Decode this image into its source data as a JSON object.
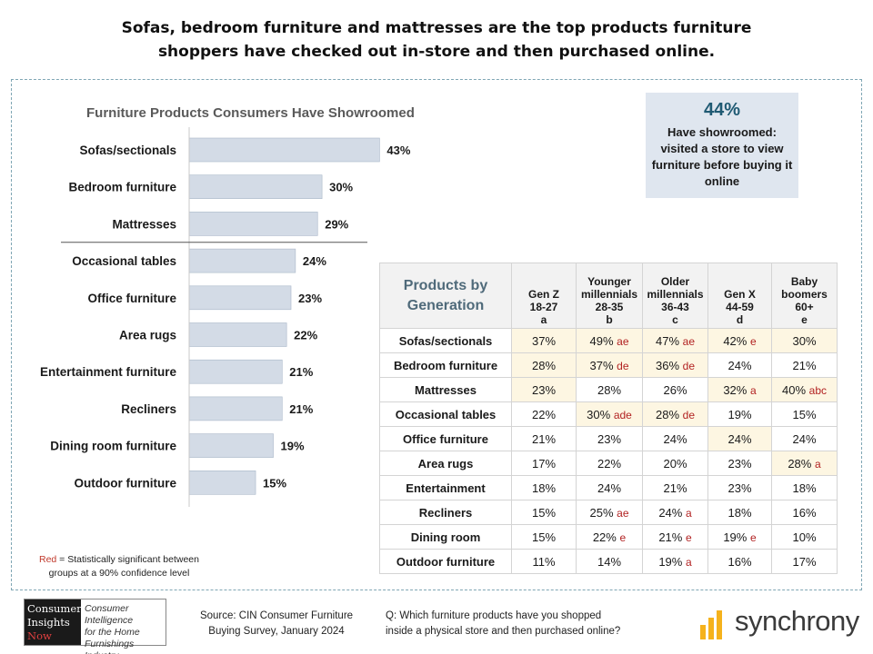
{
  "headline": {
    "line1": "Sofas, bedroom furniture and mattresses are the top products furniture",
    "line2": "shoppers have checked out in-store and then purchased online."
  },
  "chart_data": {
    "type": "bar",
    "orientation": "horizontal",
    "title": "Furniture Products Consumers Have Showroomed",
    "categories": [
      "Sofas/sectionals",
      "Bedroom furniture",
      "Mattresses",
      "Occasional tables",
      "Office furniture",
      "Area rugs",
      "Entertainment furniture",
      "Recliners",
      "Dining room furniture",
      "Outdoor furniture"
    ],
    "values": [
      43,
      30,
      29,
      24,
      23,
      22,
      21,
      21,
      19,
      15
    ],
    "value_labels": [
      "43%",
      "30%",
      "29%",
      "24%",
      "23%",
      "22%",
      "21%",
      "21%",
      "19%",
      "15%"
    ],
    "divider_after_index": 2,
    "bar_color": "#d3dbe6",
    "xlim": [
      0,
      50
    ]
  },
  "stat_box": {
    "value": "44%",
    "description": "Have showroomed: visited a store to view furniture before buying it online"
  },
  "gen_table": {
    "corner_label": [
      "Products by",
      "Generation"
    ],
    "columns": [
      {
        "lines": [
          "Gen Z",
          "18-27",
          "a"
        ]
      },
      {
        "lines": [
          "Younger",
          "millennials",
          "28-35",
          "b"
        ]
      },
      {
        "lines": [
          "Older",
          "millennials",
          "36-43",
          "c"
        ]
      },
      {
        "lines": [
          "Gen X",
          "44-59",
          "d"
        ]
      },
      {
        "lines": [
          "Baby",
          "boomers",
          "60+",
          "e"
        ]
      }
    ],
    "rows": [
      {
        "label": "Sofas/sectionals",
        "cells": [
          {
            "v": "37%",
            "s": "",
            "h": true
          },
          {
            "v": "49%",
            "s": "ae",
            "h": true
          },
          {
            "v": "47%",
            "s": "ae",
            "h": true
          },
          {
            "v": "42%",
            "s": "e",
            "h": true
          },
          {
            "v": "30%",
            "s": "",
            "h": true
          }
        ]
      },
      {
        "label": "Bedroom furniture",
        "cells": [
          {
            "v": "28%",
            "s": "",
            "h": true
          },
          {
            "v": "37%",
            "s": "de",
            "h": true
          },
          {
            "v": "36%",
            "s": "de",
            "h": true
          },
          {
            "v": "24%",
            "s": "",
            "h": false
          },
          {
            "v": "21%",
            "s": "",
            "h": false
          }
        ]
      },
      {
        "label": "Mattresses",
        "cells": [
          {
            "v": "23%",
            "s": "",
            "h": true
          },
          {
            "v": "28%",
            "s": "",
            "h": false
          },
          {
            "v": "26%",
            "s": "",
            "h": false
          },
          {
            "v": "32%",
            "s": "a",
            "h": true
          },
          {
            "v": "40%",
            "s": "abc",
            "h": true
          }
        ]
      },
      {
        "label": "Occasional tables",
        "cells": [
          {
            "v": "22%",
            "s": "",
            "h": false
          },
          {
            "v": "30%",
            "s": "ade",
            "h": true
          },
          {
            "v": "28%",
            "s": "de",
            "h": true
          },
          {
            "v": "19%",
            "s": "",
            "h": false
          },
          {
            "v": "15%",
            "s": "",
            "h": false
          }
        ]
      },
      {
        "label": "Office furniture",
        "cells": [
          {
            "v": "21%",
            "s": "",
            "h": false
          },
          {
            "v": "23%",
            "s": "",
            "h": false
          },
          {
            "v": "24%",
            "s": "",
            "h": false
          },
          {
            "v": "24%",
            "s": "",
            "h": true
          },
          {
            "v": "24%",
            "s": "",
            "h": false
          }
        ]
      },
      {
        "label": "Area rugs",
        "cells": [
          {
            "v": "17%",
            "s": "",
            "h": false
          },
          {
            "v": "22%",
            "s": "",
            "h": false
          },
          {
            "v": "20%",
            "s": "",
            "h": false
          },
          {
            "v": "23%",
            "s": "",
            "h": false
          },
          {
            "v": "28%",
            "s": "a",
            "h": true
          }
        ]
      },
      {
        "label": "Entertainment",
        "cells": [
          {
            "v": "18%",
            "s": "",
            "h": false
          },
          {
            "v": "24%",
            "s": "",
            "h": false
          },
          {
            "v": "21%",
            "s": "",
            "h": false
          },
          {
            "v": "23%",
            "s": "",
            "h": false
          },
          {
            "v": "18%",
            "s": "",
            "h": false
          }
        ]
      },
      {
        "label": "Recliners",
        "cells": [
          {
            "v": "15%",
            "s": "",
            "h": false
          },
          {
            "v": "25%",
            "s": "ae",
            "h": false
          },
          {
            "v": "24%",
            "s": "a",
            "h": false
          },
          {
            "v": "18%",
            "s": "",
            "h": false
          },
          {
            "v": "16%",
            "s": "",
            "h": false
          }
        ]
      },
      {
        "label": "Dining room",
        "cells": [
          {
            "v": "15%",
            "s": "",
            "h": false
          },
          {
            "v": "22%",
            "s": "e",
            "h": false
          },
          {
            "v": "21%",
            "s": "e",
            "h": false
          },
          {
            "v": "19%",
            "s": "e",
            "h": false
          },
          {
            "v": "10%",
            "s": "",
            "h": false
          }
        ]
      },
      {
        "label": "Outdoor furniture",
        "cells": [
          {
            "v": "11%",
            "s": "",
            "h": false
          },
          {
            "v": "14%",
            "s": "",
            "h": false
          },
          {
            "v": "19%",
            "s": "a",
            "h": false
          },
          {
            "v": "16%",
            "s": "",
            "h": false
          },
          {
            "v": "17%",
            "s": "",
            "h": false
          }
        ]
      }
    ]
  },
  "footnote": {
    "red_word": "Red",
    "rest_line1": " = Statistically significant between",
    "line2": "groups at a 90% confidence level"
  },
  "logo_cin": {
    "left": [
      "Consumer",
      "Insights",
      "Now"
    ],
    "right": [
      "Consumer Intelligence",
      "for the Home",
      "Furnishings Industry"
    ]
  },
  "source": {
    "line1": "Source:  CIN Consumer Furniture",
    "line2": "Buying Survey, January 2024"
  },
  "question": {
    "line1": "Q: Which furniture products have you shopped",
    "line2": "inside a physical store and then purchased online?"
  },
  "logo_syn": {
    "word": "synchrony",
    "color": "#f5b21c"
  }
}
